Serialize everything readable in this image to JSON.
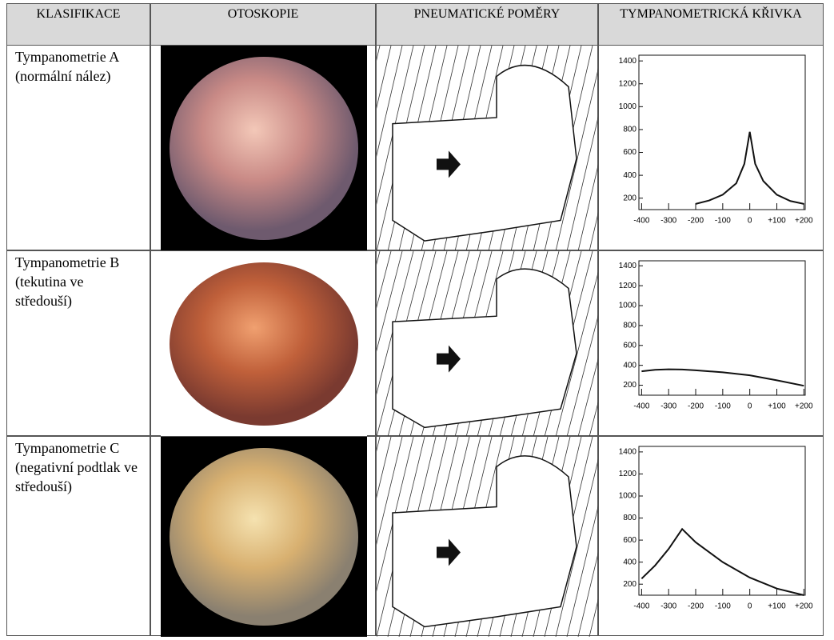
{
  "table": {
    "headers": [
      "KLASIFIKACE",
      "OTOSKOPIE",
      "PNEUMATICKÉ POMĚRY",
      "TYMPANOMETRICKÁ KŘIVKA"
    ],
    "rows": [
      {
        "label": "Tympanometrie A (normální nález)",
        "chart": {
          "type": "line",
          "ylim": [
            100,
            1450
          ],
          "yticks": [
            200,
            400,
            600,
            800,
            1000,
            1200,
            1400
          ],
          "xlim": [
            -410,
            205
          ],
          "xticks": [
            -400,
            -300,
            -200,
            -100,
            0,
            {
              "value": 100,
              "label": "+100"
            },
            {
              "value": 200,
              "label": "+200"
            }
          ],
          "x": [
            -200,
            -150,
            -100,
            -50,
            -20,
            0,
            20,
            50,
            100,
            150,
            200
          ],
          "values": [
            150,
            180,
            230,
            330,
            500,
            780,
            500,
            350,
            230,
            175,
            150
          ]
        }
      },
      {
        "label": "Tympanometrie B (tekutina ve středouší)",
        "chart": {
          "type": "line",
          "ylim": [
            100,
            1450
          ],
          "yticks": [
            200,
            400,
            600,
            800,
            1000,
            1200,
            1400
          ],
          "xlim": [
            -410,
            205
          ],
          "xticks": [
            -400,
            -300,
            -200,
            -100,
            0,
            {
              "value": 100,
              "label": "+100"
            },
            {
              "value": 200,
              "label": "+200"
            }
          ],
          "x": [
            -400,
            -350,
            -300,
            -250,
            -200,
            -100,
            0,
            100,
            200
          ],
          "values": [
            340,
            355,
            360,
            358,
            350,
            330,
            300,
            250,
            195
          ]
        }
      },
      {
        "label": "Tympanometrie C (negativní podtlak ve středouší)",
        "chart": {
          "type": "line",
          "ylim": [
            100,
            1450
          ],
          "yticks": [
            200,
            400,
            600,
            800,
            1000,
            1200,
            1400
          ],
          "xlim": [
            -410,
            205
          ],
          "xticks": [
            -400,
            -300,
            -200,
            -100,
            0,
            {
              "value": 100,
              "label": "+100"
            },
            {
              "value": 200,
              "label": "+200"
            }
          ],
          "x": [
            -400,
            -350,
            -300,
            -250,
            -200,
            -100,
            0,
            100,
            200
          ],
          "values": [
            250,
            370,
            520,
            700,
            580,
            400,
            260,
            160,
            100
          ]
        }
      }
    ]
  }
}
